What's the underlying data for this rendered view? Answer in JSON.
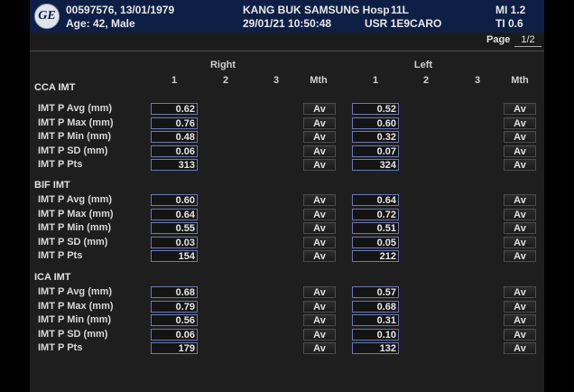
{
  "header": {
    "patient_id": "00597576, 13/01/1979",
    "age_sex": "Age: 42, Male",
    "hospital": "KANG BUK SAMSUNG Hosp",
    "datetime": "29/01/21 10:50:48",
    "probe": "11L",
    "user": "USR 1E9CARO",
    "mi": "MI 1.2",
    "ti": "TI 0.6"
  },
  "page": {
    "label": "Page",
    "value": "1/2"
  },
  "columns": {
    "right": "Right",
    "left": "Left",
    "right_nums": [
      "1",
      "2",
      "3",
      "Mth"
    ],
    "left_nums": [
      "1",
      "2",
      "3",
      "Mth"
    ]
  },
  "sections": [
    {
      "title": "CCA IMT",
      "rows": [
        {
          "label": "IMT P Avg (mm)",
          "right": "0.62",
          "left": "0.52",
          "right_mth": "Av",
          "left_mth": "Av"
        },
        {
          "label": "IMT P Max (mm)",
          "right": "0.76",
          "left": "0.60",
          "right_mth": "Av",
          "left_mth": "Av"
        },
        {
          "label": "IMT P Min (mm)",
          "right": "0.48",
          "left": "0.32",
          "right_mth": "Av",
          "left_mth": "Av"
        },
        {
          "label": "IMT P SD (mm)",
          "right": "0.06",
          "left": "0.07",
          "right_mth": "Av",
          "left_mth": "Av"
        },
        {
          "label": "IMT P Pts",
          "right": "313",
          "left": "324",
          "right_mth": "Av",
          "left_mth": "Av"
        }
      ]
    },
    {
      "title": "BIF IMT",
      "rows": [
        {
          "label": "IMT P Avg (mm)",
          "right": "0.60",
          "left": "0.64",
          "right_mth": "Av",
          "left_mth": "Av"
        },
        {
          "label": "IMT P Max (mm)",
          "right": "0.64",
          "left": "0.72",
          "right_mth": "Av",
          "left_mth": "Av"
        },
        {
          "label": "IMT P Min (mm)",
          "right": "0.55",
          "left": "0.51",
          "right_mth": "Av",
          "left_mth": "Av"
        },
        {
          "label": "IMT P SD (mm)",
          "right": "0.03",
          "left": "0.05",
          "right_mth": "Av",
          "left_mth": "Av"
        },
        {
          "label": "IMT P Pts",
          "right": "154",
          "left": "212",
          "right_mth": "Av",
          "left_mth": "Av"
        }
      ]
    },
    {
      "title": "ICA IMT",
      "rows": [
        {
          "label": "IMT P Avg (mm)",
          "right": "0.68",
          "left": "0.57",
          "right_mth": "Av",
          "left_mth": "Av"
        },
        {
          "label": "IMT P Max (mm)",
          "right": "0.79",
          "left": "0.68",
          "right_mth": "Av",
          "left_mth": "Av"
        },
        {
          "label": "IMT P Min (mm)",
          "right": "0.56",
          "left": "0.31",
          "right_mth": "Av",
          "left_mth": "Av"
        },
        {
          "label": "IMT P SD (mm)",
          "right": "0.06",
          "left": "0.10",
          "right_mth": "Av",
          "left_mth": "Av"
        },
        {
          "label": "IMT P Pts",
          "right": "179",
          "left": "132",
          "right_mth": "Av",
          "left_mth": "Av"
        }
      ]
    }
  ]
}
